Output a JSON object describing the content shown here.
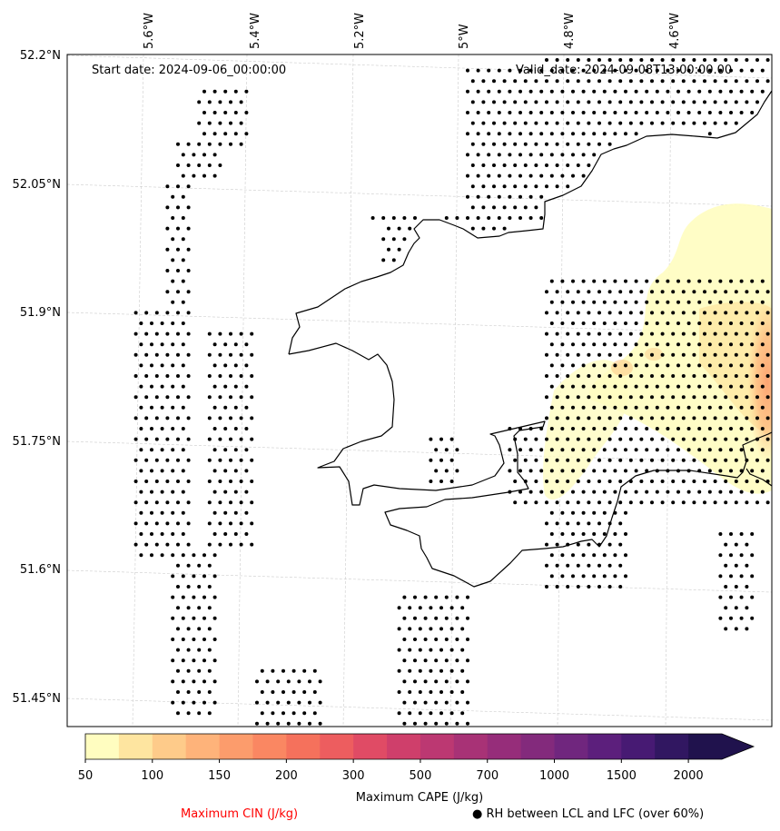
{
  "map": {
    "start_date": "Start date: 2024-09-06_00:00:00",
    "valid_date": "Valid_date: 2024-09-08T13:00:00.00",
    "lon_labels": [
      "5.6°W",
      "5.4°W",
      "5.2°W",
      "5°W",
      "4.8°W",
      "4.6°W"
    ],
    "lat_labels": [
      "52.2°N",
      "52.05°N",
      "51.9°N",
      "51.75°N",
      "51.6°N",
      "51.45°N"
    ]
  },
  "colorbar": {
    "levels": [
      "50",
      "100",
      "150",
      "200",
      "300",
      "500",
      "700",
      "1000",
      "1500",
      "2000"
    ],
    "colors": [
      "#fffdc0",
      "#fee5a0",
      "#fecb8a",
      "#feb37a",
      "#fc9c6c",
      "#fa8762",
      "#f5715c",
      "#ed5d5f",
      "#e04b65",
      "#cf3f6b",
      "#bc3872",
      "#a83276",
      "#962d7a",
      "#832a7c",
      "#70267e",
      "#5c1f7c",
      "#471a73",
      "#311761",
      "#20124d"
    ],
    "extend_color": "#20124d",
    "xlabel": "Maximum CAPE (J/kg)"
  },
  "legend": {
    "cin_label": "Maximum CIN (J/kg)",
    "cin_color": "#ff0000",
    "rh_label": "RH between LCL and LFC (over 60%)",
    "rh_marker": "●"
  }
}
